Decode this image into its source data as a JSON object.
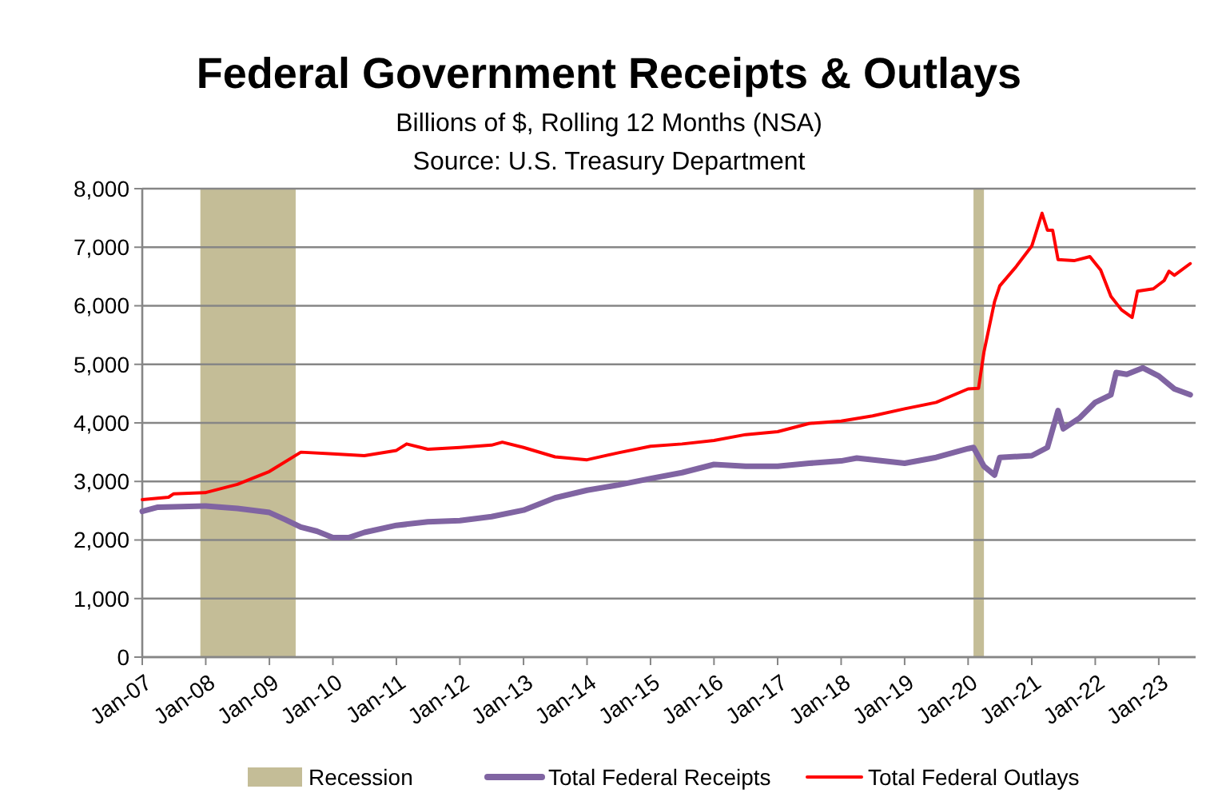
{
  "chart_data": {
    "type": "line",
    "title": "Federal Government Receipts & Outlays",
    "subtitle": "Billions of $, Rolling 12 Months (NSA)",
    "annotations": [
      "Source:  U.S. Treasury Department"
    ],
    "xlim": [
      "2007-01",
      "2023-08"
    ],
    "xticks": [
      {
        "value": "2007-01",
        "label": "Jan-07"
      },
      {
        "value": "2008-01",
        "label": "Jan-08"
      },
      {
        "value": "2009-01",
        "label": "Jan-09"
      },
      {
        "value": "2010-01",
        "label": "Jan-10"
      },
      {
        "value": "2011-01",
        "label": "Jan-11"
      },
      {
        "value": "2012-01",
        "label": "Jan-12"
      },
      {
        "value": "2013-01",
        "label": "Jan-13"
      },
      {
        "value": "2014-01",
        "label": "Jan-14"
      },
      {
        "value": "2015-01",
        "label": "Jan-15"
      },
      {
        "value": "2016-01",
        "label": "Jan-16"
      },
      {
        "value": "2017-01",
        "label": "Jan-17"
      },
      {
        "value": "2018-01",
        "label": "Jan-18"
      },
      {
        "value": "2019-01",
        "label": "Jan-19"
      },
      {
        "value": "2020-01",
        "label": "Jan-20"
      },
      {
        "value": "2021-01",
        "label": "Jan-21"
      },
      {
        "value": "2022-01",
        "label": "Jan-22"
      },
      {
        "value": "2023-01",
        "label": "Jan-23"
      }
    ],
    "ylim": [
      0,
      8000
    ],
    "yticks": [
      0,
      {
        "value": 1000,
        "label": "1,000"
      },
      {
        "value": 2000,
        "label": "2,000"
      },
      {
        "value": 3000,
        "label": "3,000"
      },
      {
        "value": 4000,
        "label": "4,000"
      },
      {
        "value": 5000,
        "label": "5,000"
      },
      {
        "value": 6000,
        "label": "6,000"
      },
      {
        "value": 7000,
        "label": "7,000"
      },
      {
        "value": 8000,
        "label": "8,000"
      }
    ],
    "grid": "y",
    "legend": "bottom",
    "bands": [
      {
        "axis": "x",
        "from": "2007-12",
        "to": "2009-06",
        "label": "Recession",
        "color": "#c4bd97"
      },
      {
        "axis": "x",
        "from": "2020-02",
        "to": "2020-04",
        "color": "#c4bd97"
      }
    ],
    "series": [
      {
        "name": "Total Federal Receipts",
        "color": "#8064a2",
        "x": [
          "2007-01",
          "2007-04",
          "2008-01",
          "2008-07",
          "2009-01",
          "2009-04",
          "2009-07",
          "2009-10",
          "2010-01",
          "2010-04",
          "2010-07",
          "2011-01",
          "2011-07",
          "2012-01",
          "2012-07",
          "2013-01",
          "2013-07",
          "2014-01",
          "2014-07",
          "2015-01",
          "2015-07",
          "2016-01",
          "2016-07",
          "2017-01",
          "2017-07",
          "2018-01",
          "2018-04",
          "2019-01",
          "2019-07",
          "2020-01",
          "2020-02",
          "2020-04",
          "2020-06",
          "2020-07",
          "2021-01",
          "2021-04",
          "2021-06",
          "2021-07",
          "2021-10",
          "2022-01",
          "2022-04",
          "2022-05",
          "2022-07",
          "2022-10",
          "2023-01",
          "2023-04",
          "2023-07"
        ],
        "values": [
          2490,
          2560,
          2580,
          2540,
          2470,
          2350,
          2220,
          2150,
          2040,
          2040,
          2130,
          2250,
          2310,
          2330,
          2400,
          2510,
          2720,
          2850,
          2940,
          3050,
          3150,
          3290,
          3260,
          3260,
          3310,
          3350,
          3400,
          3310,
          3410,
          3560,
          3580,
          3260,
          3110,
          3410,
          3440,
          3580,
          4210,
          3900,
          4080,
          4350,
          4480,
          4860,
          4830,
          4940,
          4800,
          4580,
          4480
        ]
      },
      {
        "name": "Total Federal Outlays",
        "color": "#ff0000",
        "x": [
          "2007-01",
          "2007-06",
          "2007-07",
          "2008-01",
          "2008-07",
          "2009-01",
          "2009-07",
          "2010-01",
          "2010-07",
          "2011-01",
          "2011-03",
          "2011-07",
          "2012-01",
          "2012-07",
          "2012-09",
          "2013-01",
          "2013-07",
          "2014-01",
          "2014-07",
          "2015-01",
          "2015-07",
          "2016-01",
          "2016-07",
          "2017-01",
          "2017-07",
          "2018-01",
          "2018-07",
          "2019-01",
          "2019-07",
          "2020-01",
          "2020-03",
          "2020-04",
          "2020-06",
          "2020-07",
          "2020-10",
          "2021-01",
          "2021-03",
          "2021-04",
          "2021-05",
          "2021-06",
          "2021-09",
          "2021-12",
          "2022-02",
          "2022-04",
          "2022-06",
          "2022-08",
          "2022-09",
          "2022-12",
          "2023-02",
          "2023-03",
          "2023-04",
          "2023-07"
        ],
        "values": [
          2690,
          2730,
          2790,
          2810,
          2950,
          3170,
          3500,
          3470,
          3440,
          3530,
          3640,
          3550,
          3580,
          3620,
          3670,
          3580,
          3420,
          3370,
          3490,
          3600,
          3640,
          3700,
          3800,
          3850,
          3990,
          4030,
          4120,
          4240,
          4350,
          4580,
          4590,
          5210,
          6070,
          6340,
          6660,
          7020,
          7580,
          7290,
          7290,
          6790,
          6770,
          6840,
          6610,
          6160,
          5930,
          5800,
          6250,
          6290,
          6430,
          6590,
          6520,
          6720
        ]
      }
    ]
  }
}
